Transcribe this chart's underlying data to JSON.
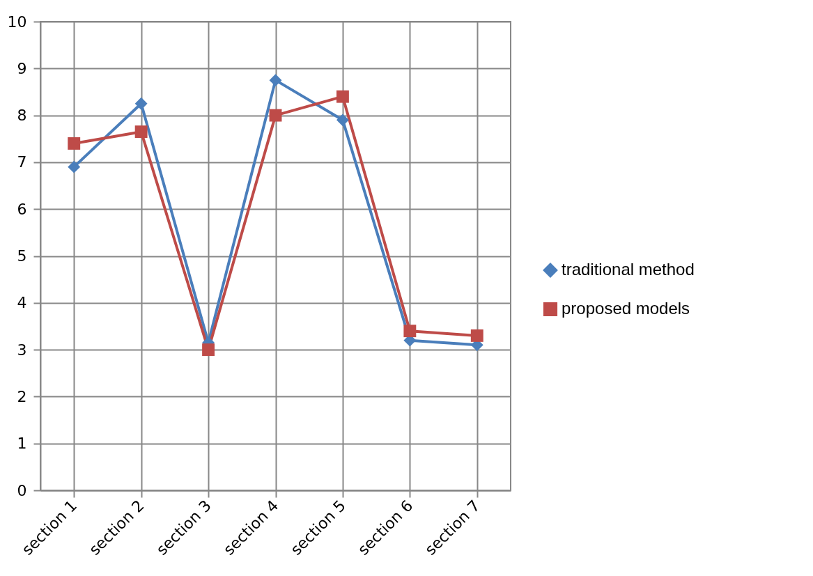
{
  "chart_data": {
    "type": "line",
    "categories": [
      "section 1",
      "section 2",
      "section 3",
      "section 4",
      "section 5",
      "section 6",
      "section 7"
    ],
    "series": [
      {
        "name": "traditional method",
        "color": "#4a7ebb",
        "marker": "diamond",
        "values": [
          6.9,
          8.25,
          3.15,
          8.75,
          7.9,
          3.2,
          3.1
        ]
      },
      {
        "name": "proposed models",
        "color": "#be4b48",
        "marker": "square",
        "values": [
          7.4,
          7.65,
          3.0,
          8.0,
          8.4,
          3.4,
          3.3
        ]
      }
    ],
    "ylim": [
      0,
      10
    ],
    "yticks": [
      0,
      1,
      2,
      3,
      4,
      5,
      6,
      7,
      8,
      9,
      10
    ],
    "grid": true,
    "legend": "right",
    "line_style": "solid"
  }
}
